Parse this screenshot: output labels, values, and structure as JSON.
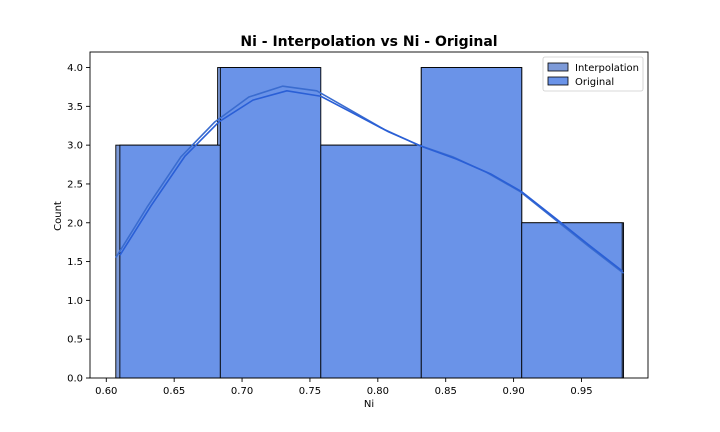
{
  "chart_data": {
    "type": "bar",
    "title": "Ni - Interpolation vs Ni - Original",
    "xlabel": "Ni",
    "ylabel": "Count",
    "xlim": [
      0.588,
      0.999
    ],
    "ylim": [
      0,
      4.2
    ],
    "xticks": [
      0.6,
      0.65,
      0.7,
      0.75,
      0.8,
      0.85,
      0.9,
      0.95
    ],
    "xtick_labels": [
      "0.60",
      "0.65",
      "0.70",
      "0.75",
      "0.80",
      "0.85",
      "0.90",
      "0.95"
    ],
    "yticks": [
      0.0,
      0.5,
      1.0,
      1.5,
      2.0,
      2.5,
      3.0,
      3.5,
      4.0
    ],
    "ytick_labels": [
      "0.0",
      "0.5",
      "1.0",
      "1.5",
      "2.0",
      "2.5",
      "3.0",
      "3.5",
      "4.0"
    ],
    "grid": false,
    "legend_position": "top-right",
    "series": [
      {
        "name": "Interpolation",
        "color": "#7d9ad8",
        "kde_color": "#3a6ccf",
        "bins": [
          {
            "x0": 0.607,
            "x1": 0.682,
            "count": 3
          },
          {
            "x0": 0.682,
            "x1": 0.757,
            "count": 4
          },
          {
            "x0": 0.757,
            "x1": 0.832,
            "count": 3
          },
          {
            "x0": 0.832,
            "x1": 0.906,
            "count": 4
          },
          {
            "x0": 0.906,
            "x1": 0.981,
            "count": 2
          }
        ],
        "kde": [
          {
            "x": 0.607,
            "y": 1.55
          },
          {
            "x": 0.63,
            "y": 2.2
          },
          {
            "x": 0.655,
            "y": 2.85
          },
          {
            "x": 0.68,
            "y": 3.3
          },
          {
            "x": 0.705,
            "y": 3.62
          },
          {
            "x": 0.73,
            "y": 3.76
          },
          {
            "x": 0.755,
            "y": 3.7
          },
          {
            "x": 0.78,
            "y": 3.45
          },
          {
            "x": 0.805,
            "y": 3.2
          },
          {
            "x": 0.83,
            "y": 3.0
          },
          {
            "x": 0.855,
            "y": 2.85
          },
          {
            "x": 0.88,
            "y": 2.65
          },
          {
            "x": 0.905,
            "y": 2.4
          },
          {
            "x": 0.93,
            "y": 2.05
          },
          {
            "x": 0.955,
            "y": 1.7
          },
          {
            "x": 0.981,
            "y": 1.35
          }
        ]
      },
      {
        "name": "Original",
        "color": "#6a93e8",
        "kde_color": "#2a5fd6",
        "bins": [
          {
            "x0": 0.61,
            "x1": 0.684,
            "count": 3
          },
          {
            "x0": 0.684,
            "x1": 0.758,
            "count": 4
          },
          {
            "x0": 0.758,
            "x1": 0.832,
            "count": 3
          },
          {
            "x0": 0.832,
            "x1": 0.906,
            "count": 4
          },
          {
            "x0": 0.906,
            "x1": 0.98,
            "count": 2
          }
        ],
        "kde": [
          {
            "x": 0.61,
            "y": 1.58
          },
          {
            "x": 0.633,
            "y": 2.22
          },
          {
            "x": 0.658,
            "y": 2.86
          },
          {
            "x": 0.683,
            "y": 3.3
          },
          {
            "x": 0.708,
            "y": 3.58
          },
          {
            "x": 0.733,
            "y": 3.7
          },
          {
            "x": 0.758,
            "y": 3.63
          },
          {
            "x": 0.783,
            "y": 3.4
          },
          {
            "x": 0.808,
            "y": 3.17
          },
          {
            "x": 0.833,
            "y": 2.98
          },
          {
            "x": 0.858,
            "y": 2.82
          },
          {
            "x": 0.883,
            "y": 2.63
          },
          {
            "x": 0.906,
            "y": 2.4
          },
          {
            "x": 0.93,
            "y": 2.07
          },
          {
            "x": 0.955,
            "y": 1.72
          },
          {
            "x": 0.98,
            "y": 1.38
          }
        ]
      }
    ]
  }
}
